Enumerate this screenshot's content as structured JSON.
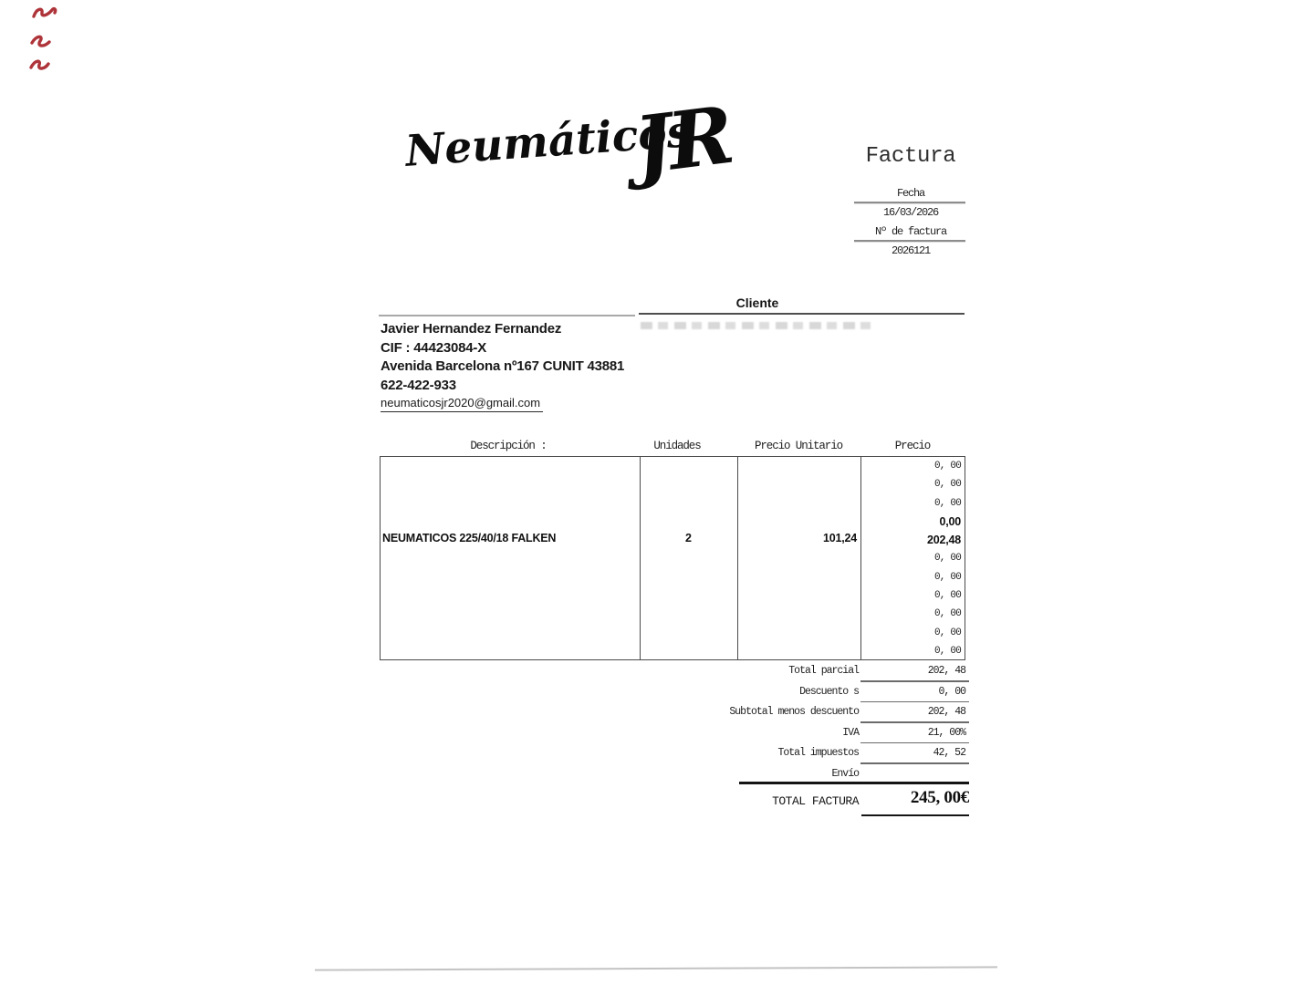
{
  "header": {
    "logo_script": "Neumáticos",
    "logo_monogram": "JR",
    "title": "Factura",
    "fecha_label": "Fecha",
    "fecha_value": "16/03/2026",
    "factura_num_label": "Nº de factura",
    "factura_num_value": "2026121"
  },
  "cliente": {
    "section_title": "Cliente",
    "name": "Javier Hernandez Fernandez",
    "cif": "CIF : 44423084-X",
    "address": "Avenida Barcelona nº167  CUNIT 43881",
    "phone": "622-422-933",
    "email": "neumaticosjr2020@gmail.com"
  },
  "items_table": {
    "headers": {
      "description": "Descripción :",
      "units": "Unidades",
      "unit_price": "Precio Unitario",
      "price": "Precio"
    },
    "item": {
      "description": "NEUMATICOS 225/40/18  FALKEN",
      "units": "2",
      "unit_price": "101,24",
      "price": "202,48"
    },
    "price_rows": [
      {
        "value": "0, 00",
        "bold": false
      },
      {
        "value": "0, 00",
        "bold": false
      },
      {
        "value": "0, 00",
        "bold": false
      },
      {
        "value": "0,00",
        "bold": true
      },
      {
        "value": "202,48",
        "bold": true
      },
      {
        "value": "0, 00",
        "bold": false
      },
      {
        "value": "0, 00",
        "bold": false
      },
      {
        "value": "0, 00",
        "bold": false
      },
      {
        "value": "0, 00",
        "bold": false
      },
      {
        "value": "0, 00",
        "bold": false
      },
      {
        "value": "0, 00",
        "bold": false
      }
    ]
  },
  "totals": {
    "rows": [
      {
        "label": "Total parcial",
        "value": "202, 48",
        "line": true
      },
      {
        "label": "Descuento s",
        "value": "0, 00",
        "line": true
      },
      {
        "label": "Subtotal menos descuento",
        "value": "202, 48",
        "line": true
      },
      {
        "label": "IVA",
        "value": "21, 00%",
        "line": true
      },
      {
        "label": "Total impuestos",
        "value": "42, 52",
        "line": true
      },
      {
        "label": "Envío",
        "value": "",
        "line": false
      }
    ],
    "total_label": "TOTAL FACTURA",
    "total_value": "245, 00€"
  },
  "colors": {
    "ink": "#1c1c1c",
    "pen_mark_red": "#a8232a",
    "rule_gray": "#8d8d8d"
  }
}
